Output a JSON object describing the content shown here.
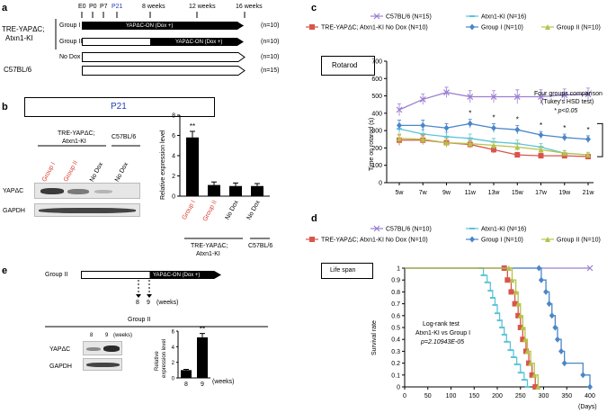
{
  "panel_a": {
    "label": "a",
    "timepoints": [
      "E0",
      "P0",
      "P7",
      "P21",
      "8 weeks",
      "12 weeks",
      "16 weeks"
    ],
    "line1": "TRE-YAPΔC;",
    "line2": "Atxn1-KI",
    "control": "C57BL/6",
    "groups": [
      {
        "name": "Group I",
        "n": "(n=10)",
        "bar_text": "YAPΔC-ON (Dox +)"
      },
      {
        "name": "Group II",
        "n": "(n=10)",
        "bar_text": "YAPΔC-ON (Dox +)"
      },
      {
        "name": "No Dox",
        "n": "(n=10)",
        "bar_text": ""
      },
      {
        "name": "",
        "n": "(n=15)",
        "bar_text": ""
      }
    ],
    "p21_box": "P21"
  },
  "panel_b": {
    "label": "b",
    "header1": "TRE-YAPΔC;",
    "header2": "Atxn1-KI",
    "header3": "C57BL/6",
    "lanes": [
      "Group I",
      "Group II",
      "No Dox",
      "No Dox"
    ],
    "row1": "YAPΔC",
    "row2": "GAPDH",
    "colors": {
      "red": "#d9392b"
    }
  },
  "panel_e": {
    "label": "e",
    "group": "Group II",
    "bar_text": "YAPΔC-ON (Dox +)",
    "weeks": [
      "8",
      "9"
    ],
    "weeks_label": "(weeks)",
    "blot_title": "Group II",
    "row1": "YAPΔC",
    "row2": "GAPDH"
  },
  "panel_c": {
    "label": "c",
    "box_label": "Rotarod"
  },
  "panel_d": {
    "label": "d",
    "box_label": "Life span"
  },
  "chart_data": [
    {
      "id": "b_bar",
      "type": "bar",
      "categories": [
        "Group I",
        "Group II",
        "No Dox",
        "No Dox"
      ],
      "values": [
        5.8,
        1.1,
        1.0,
        1.0
      ],
      "errors": [
        0.6,
        0.3,
        0.3,
        0.25
      ],
      "ylabel": "Relative expression level",
      "yticks": [
        "0",
        "2",
        "4",
        "6",
        "8"
      ],
      "ylim": [
        0,
        8
      ],
      "sig": "**",
      "group_label1": "TRE-YAPΔC;",
      "group_label2": "Atxn1-KI",
      "group_label3": "C57BL/6"
    },
    {
      "id": "e_bar",
      "type": "bar",
      "categories": [
        "8",
        "9"
      ],
      "values": [
        1.0,
        5.2
      ],
      "errors": [
        0.1,
        0.5
      ],
      "ylabel1": "Relative",
      "ylabel2": "expression level",
      "yticks": [
        "0",
        "2",
        "4",
        "6"
      ],
      "ylim": [
        0,
        6
      ],
      "sig": "**",
      "xlabel": "(weeks)"
    },
    {
      "id": "c_line",
      "type": "line",
      "title": "Rotarod",
      "ylabel": "Time on rotarod (s)",
      "x": [
        "5w",
        "7w",
        "9w",
        "11w",
        "13w",
        "15w",
        "17w",
        "19w",
        "21w"
      ],
      "yticks": [
        "0",
        "100",
        "200",
        "300",
        "400",
        "500",
        "600",
        "700"
      ],
      "ylim": [
        0,
        700
      ],
      "series": [
        {
          "name": "C57BL/6 (N=15)",
          "color": "#9b7fd0",
          "marker": "x",
          "values": [
            420,
            480,
            520,
            495,
            495,
            495,
            495,
            505,
            510
          ],
          "err": [
            35,
            30,
            30,
            35,
            35,
            40,
            40,
            35,
            35
          ]
        },
        {
          "name": "Atxn1-KI (N=16)",
          "color": "#5bc4d8",
          "marker": "dash",
          "values": [
            310,
            280,
            265,
            255,
            235,
            225,
            205,
            170,
            160
          ],
          "err": [
            25,
            25,
            25,
            25,
            20,
            20,
            20,
            15,
            15
          ]
        },
        {
          "name": "TRE-YAPΔC; Atxn1-KI No Dox (N=10)",
          "color": "#d9554b",
          "marker": "square",
          "values": [
            245,
            245,
            230,
            220,
            190,
            160,
            155,
            155,
            150
          ],
          "err": [
            30,
            25,
            25,
            20,
            20,
            15,
            15,
            15,
            15
          ]
        },
        {
          "name": "Group I (N=10)",
          "color": "#4a86c8",
          "marker": "diamond",
          "values": [
            330,
            330,
            315,
            340,
            315,
            305,
            275,
            260,
            250
          ],
          "err": [
            30,
            30,
            25,
            25,
            25,
            25,
            20,
            20,
            20
          ]
        },
        {
          "name": "Group II (N=10)",
          "color": "#b5c34a",
          "marker": "triangle",
          "values": [
            255,
            250,
            230,
            225,
            215,
            205,
            190,
            170,
            160
          ],
          "err": [
            25,
            25,
            25,
            20,
            20,
            20,
            20,
            15,
            15
          ]
        }
      ],
      "stars_at": [
        "11w",
        "13w",
        "15w",
        "17w",
        "19w",
        "21w"
      ],
      "annotation1": "Four groups comparison",
      "annotation2": "(Tukey's HSD test)",
      "annotation3": "* p<0.05"
    },
    {
      "id": "d_survival",
      "type": "line",
      "title": "Life span",
      "ylabel": "Survival rate",
      "xlabel": "(Days)",
      "xticks": [
        "0",
        "50",
        "100",
        "150",
        "200",
        "250",
        "300",
        "350",
        "400"
      ],
      "yticks": [
        "0",
        "0.1",
        "0.2",
        "0.3",
        "0.4",
        "0.5",
        "0.6",
        "0.7",
        "0.8",
        "0.9",
        "1"
      ],
      "xlim": [
        0,
        400
      ],
      "ylim": [
        0,
        1
      ],
      "series": [
        {
          "name": "C57BL/6 (N=10)",
          "color": "#9b7fd0",
          "marker": "x",
          "points": [
            [
              0,
              1
            ],
            [
              400,
              1
            ]
          ]
        },
        {
          "name": "Atxn1-KI (N=16)",
          "color": "#5bc4d8",
          "marker": "dash",
          "points": [
            [
              0,
              1
            ],
            [
              165,
              1
            ],
            [
              170,
              0.94
            ],
            [
              178,
              0.88
            ],
            [
              185,
              0.81
            ],
            [
              190,
              0.75
            ],
            [
              195,
              0.69
            ],
            [
              200,
              0.62
            ],
            [
              205,
              0.56
            ],
            [
              210,
              0.5
            ],
            [
              215,
              0.44
            ],
            [
              220,
              0.38
            ],
            [
              228,
              0.31
            ],
            [
              235,
              0.25
            ],
            [
              242,
              0.19
            ],
            [
              250,
              0.12
            ],
            [
              258,
              0.06
            ],
            [
              265,
              0
            ]
          ]
        },
        {
          "name": "TRE-YAPΔC; Atxn1-KI No Dox (N=10)",
          "color": "#d9554b",
          "marker": "square",
          "points": [
            [
              0,
              1
            ],
            [
              215,
              1
            ],
            [
              222,
              0.9
            ],
            [
              230,
              0.8
            ],
            [
              238,
              0.7
            ],
            [
              245,
              0.6
            ],
            [
              250,
              0.5
            ],
            [
              255,
              0.4
            ],
            [
              262,
              0.3
            ],
            [
              268,
              0.2
            ],
            [
              275,
              0.1
            ],
            [
              282,
              0
            ]
          ]
        },
        {
          "name": "Group I (N=10)",
          "color": "#4a86c8",
          "marker": "diamond",
          "points": [
            [
              0,
              1
            ],
            [
              290,
              1
            ],
            [
              295,
              0.9
            ],
            [
              305,
              0.8
            ],
            [
              312,
              0.7
            ],
            [
              318,
              0.6
            ],
            [
              325,
              0.5
            ],
            [
              330,
              0.4
            ],
            [
              338,
              0.3
            ],
            [
              345,
              0.2
            ],
            [
              385,
              0.1
            ],
            [
              400,
              0
            ]
          ]
        },
        {
          "name": "Group II (N=10)",
          "color": "#b5c34a",
          "marker": "triangle",
          "points": [
            [
              0,
              1
            ],
            [
              225,
              1
            ],
            [
              232,
              0.9
            ],
            [
              240,
              0.8
            ],
            [
              245,
              0.7
            ],
            [
              250,
              0.6
            ],
            [
              255,
              0.5
            ],
            [
              260,
              0.4
            ],
            [
              265,
              0.3
            ],
            [
              272,
              0.2
            ],
            [
              280,
              0.1
            ],
            [
              288,
              0
            ]
          ]
        }
      ],
      "annotation1": "Log-rank test",
      "annotation2": "Atxn1-KI vs Group I",
      "annotation3": "p=2.10943E-05"
    }
  ]
}
